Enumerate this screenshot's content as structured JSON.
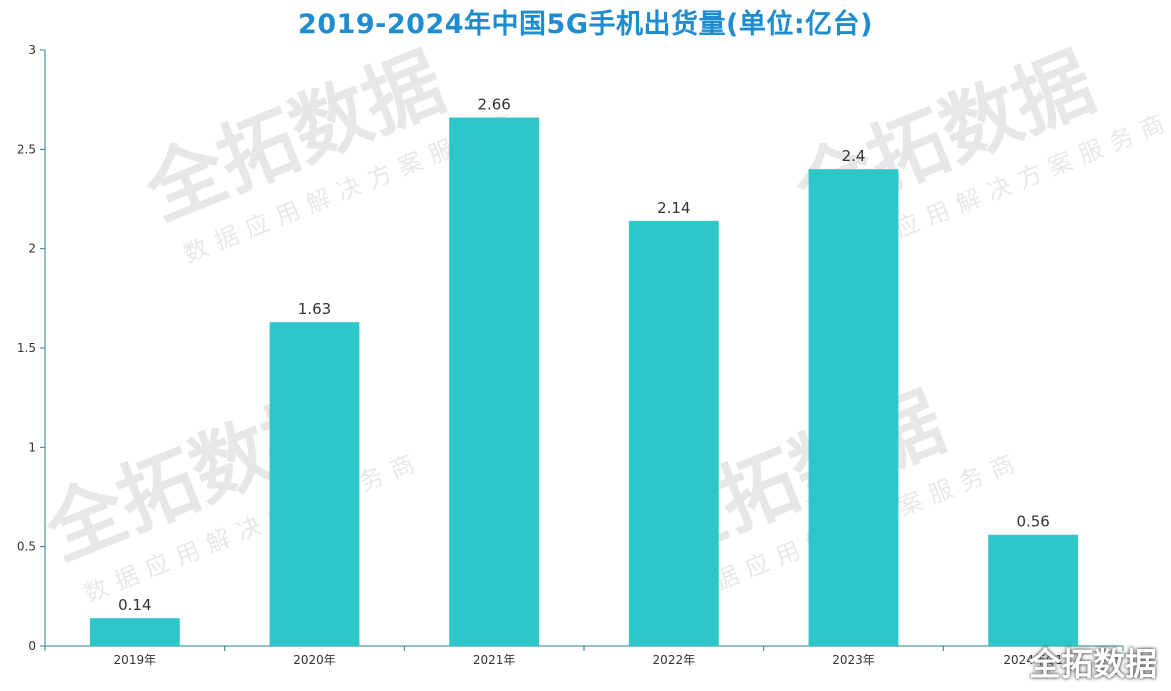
{
  "chart_data": {
    "type": "bar",
    "title": "2019-2024年中国5G手机出货量(单位:亿台)",
    "categories": [
      "2019年",
      "2020年",
      "2021年",
      "2022年",
      "2023年",
      "2024年Q1"
    ],
    "values": [
      0.14,
      1.63,
      2.66,
      2.14,
      2.4,
      0.56
    ],
    "value_labels": [
      "0.14",
      "1.63",
      "2.66",
      "2.14",
      "2.4",
      "0.56"
    ],
    "ylim": [
      0,
      3
    ],
    "yticks": [
      "0",
      "0.5",
      "1",
      "1.5",
      "2",
      "2.5",
      "3"
    ],
    "grid": false,
    "colors": {
      "bar": "#2ec7c9",
      "title": "#1e8ccf",
      "axis": "#2a7f8a"
    }
  },
  "watermark": {
    "main": "全拓数据",
    "sub": "数据应用解决方案服务商"
  },
  "brand": "全拓数据"
}
